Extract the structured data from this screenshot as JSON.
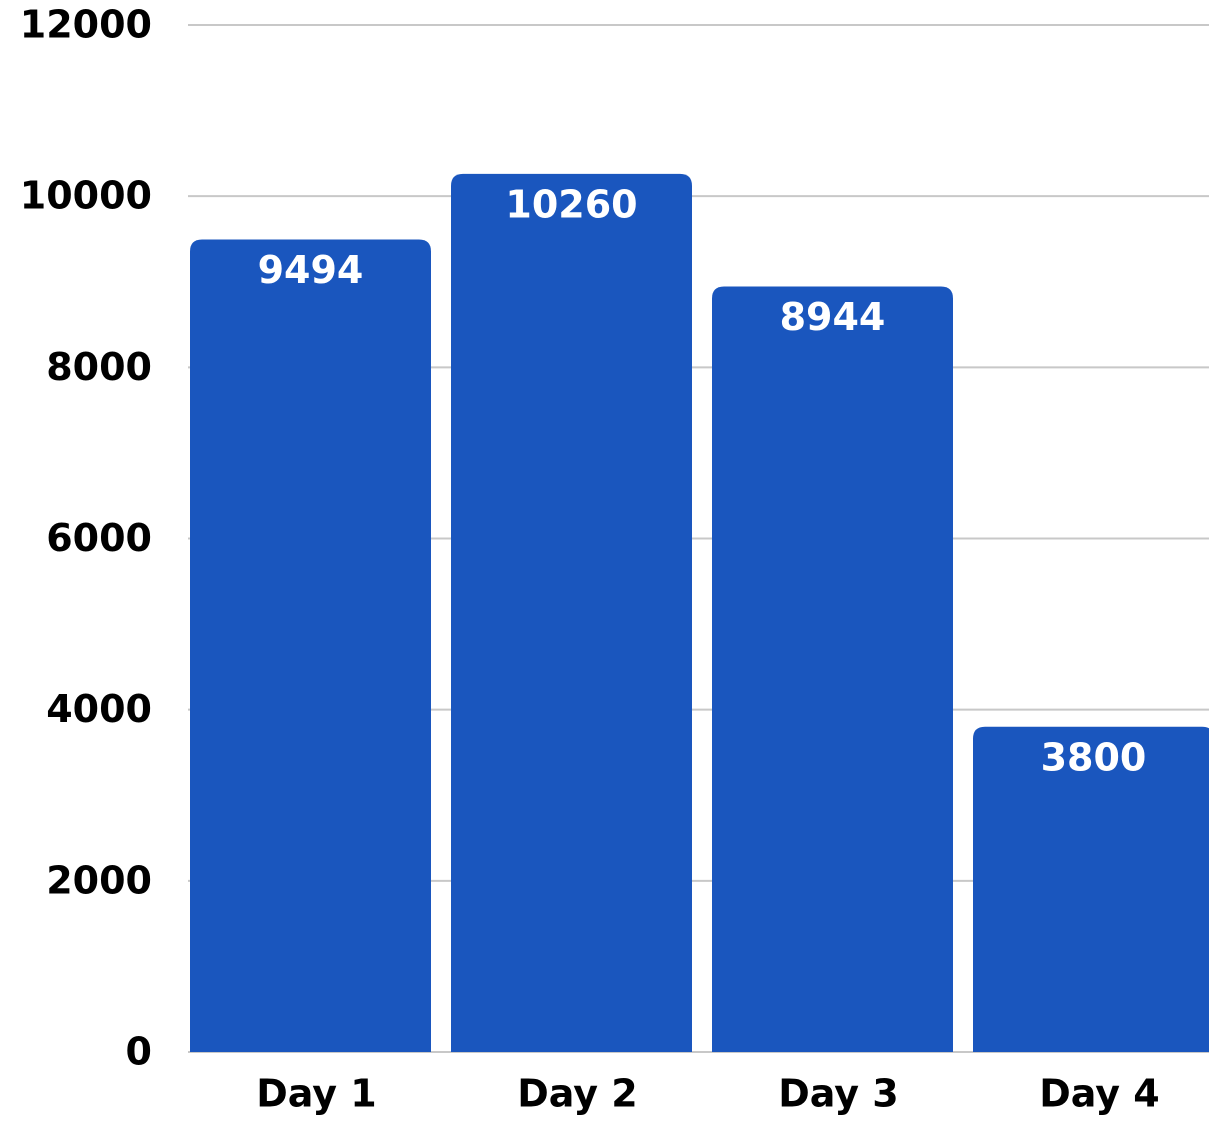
{
  "chart_data": {
    "type": "bar",
    "categories": [
      "Day 1",
      "Day 2",
      "Day 3",
      "Day 4"
    ],
    "values": [
      9494,
      10260,
      8944,
      3800
    ],
    "color": "#1a56be",
    "ylim": [
      0,
      12000
    ],
    "yticks": [
      0,
      2000,
      4000,
      6000,
      8000,
      10000,
      12000
    ],
    "grid": true
  }
}
